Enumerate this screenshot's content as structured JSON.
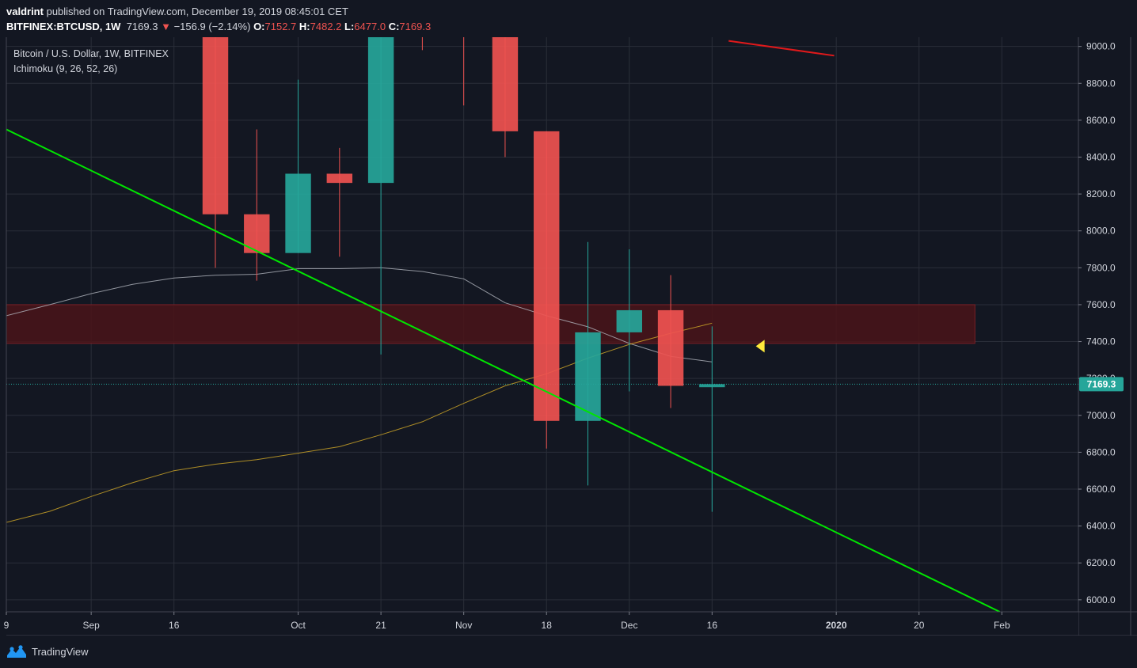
{
  "header": {
    "publisher": "valdrint",
    "published_text": "published on TradingView.com, December 19, 2019 08:45:01 CET",
    "symbol": "BITFINEX:BTCUSD, 1W",
    "last": "7169.3",
    "change_arrow": "▼",
    "change": "−156.9 (−2.14%)",
    "o_label": "O:",
    "o_value": "7152.7",
    "h_label": "H:",
    "h_value": "7482.2",
    "l_label": "L:",
    "l_value": "6477.0",
    "c_label": "C:",
    "c_value": "7169.3"
  },
  "legend": {
    "title": "Bitcoin / U.S. Dollar, 1W, BITFINEX",
    "indicator": "Ichimoku (9, 26, 52, 26)"
  },
  "footer": {
    "brand": "TradingView",
    "logo_icon": "tradingview-logo-icon"
  },
  "colors": {
    "background": "#131722",
    "grid": "#2a2e39",
    "up": "#26a69a",
    "down": "#ef5350",
    "trendline": "#00e600",
    "zone_fill": "#4a1419",
    "zone_stroke": "#7a2026",
    "base_line": "#b2b5be",
    "span_line": "#c9a227",
    "arrow": "#ffeb3b",
    "price_tag": "#26a69a"
  },
  "chart_data": {
    "type": "candlestick",
    "title": "Bitcoin / U.S. Dollar, 1W, BITFINEX",
    "x_labels": [
      "9",
      "Sep",
      "16",
      "Oct",
      "21",
      "Nov",
      "18",
      "Dec",
      "16",
      "2020",
      "20",
      "Feb"
    ],
    "x_label_weeks": [
      -4.05,
      -2,
      0,
      3,
      5,
      7,
      9,
      11,
      13,
      16,
      18,
      20
    ],
    "y_ticks": [
      "6000.0",
      "6200.0",
      "6400.0",
      "6600.0",
      "6800.0",
      "7000.0",
      "7200.0",
      "7400.0",
      "7600.0",
      "7800.0",
      "8000.0",
      "8200.0",
      "8400.0",
      "8600.0",
      "8800.0",
      "9000.0"
    ],
    "y_tick_values": [
      6000,
      6200,
      6400,
      6600,
      6800,
      7000,
      7200,
      7400,
      7600,
      7800,
      8000,
      8200,
      8400,
      8600,
      8800,
      9000
    ],
    "ylim": [
      5935,
      9050
    ],
    "week_range": [
      -4.05,
      21.85
    ],
    "candles": [
      {
        "week": 1,
        "open": 9500,
        "high": 9600,
        "low": 7800,
        "close": 8090
      },
      {
        "week": 2,
        "open": 8090,
        "high": 8550,
        "low": 7730,
        "close": 7880
      },
      {
        "week": 3,
        "open": 7880,
        "high": 8820,
        "low": 7880,
        "close": 8310
      },
      {
        "week": 4,
        "open": 8310,
        "high": 8450,
        "low": 7860,
        "close": 8260
      },
      {
        "week": 5,
        "open": 8260,
        "high": 9500,
        "low": 7330,
        "close": 9350
      },
      {
        "week": 6,
        "open": 9350,
        "high": 9400,
        "low": 8980,
        "close": 9250
      },
      {
        "week": 7,
        "open": 9200,
        "high": 9250,
        "low": 8680,
        "close": 9150
      },
      {
        "week": 8,
        "open": 9150,
        "high": 9200,
        "low": 8400,
        "close": 8540
      },
      {
        "week": 9,
        "open": 8540,
        "high": 8540,
        "low": 6820,
        "close": 6970
      },
      {
        "week": 10,
        "open": 6970,
        "high": 7940,
        "low": 6620,
        "close": 7450
      },
      {
        "week": 11,
        "open": 7450,
        "high": 7900,
        "low": 7130,
        "close": 7570
      },
      {
        "week": 12,
        "open": 7570,
        "high": 7760,
        "low": 7040,
        "close": 7160
      },
      {
        "week": 13,
        "open": 7152.7,
        "high": 7482.2,
        "low": 6477.0,
        "close": 7169.3
      }
    ],
    "trendline": [
      [
        -4.05,
        8550
      ],
      [
        19.95,
        5935
      ]
    ],
    "resistance_zone": {
      "from_week": -4.05,
      "to_week": 19.35,
      "low": 7390,
      "high": 7600
    },
    "ichimoku_base_line": [
      [
        -4.05,
        7540
      ],
      [
        -3,
        7600
      ],
      [
        -2,
        7660
      ],
      [
        -1,
        7710
      ],
      [
        0,
        7745
      ],
      [
        1,
        7760
      ],
      [
        2,
        7765
      ],
      [
        3,
        7795
      ],
      [
        4,
        7795
      ],
      [
        5,
        7800
      ],
      [
        6,
        7780
      ],
      [
        7,
        7740
      ],
      [
        8,
        7610
      ],
      [
        9,
        7540
      ],
      [
        10,
        7480
      ],
      [
        11,
        7390
      ],
      [
        12,
        7320
      ],
      [
        13,
        7290
      ]
    ],
    "ichimoku_span_line": [
      [
        -4.05,
        6420
      ],
      [
        -3,
        6480
      ],
      [
        -2,
        6560
      ],
      [
        -1,
        6635
      ],
      [
        0,
        6700
      ],
      [
        1,
        6735
      ],
      [
        2,
        6760
      ],
      [
        3,
        6795
      ],
      [
        4,
        6830
      ],
      [
        5,
        6895
      ],
      [
        6,
        6965
      ],
      [
        7,
        7065
      ],
      [
        8,
        7160
      ],
      [
        9,
        7225
      ],
      [
        10,
        7310
      ],
      [
        11,
        7385
      ],
      [
        12,
        7445
      ],
      [
        13,
        7500
      ]
    ],
    "last_price": 7169.3,
    "last_price_label": "7169.3",
    "marker_week": 14,
    "marker_price": 7375,
    "upper_right_line": [
      [
        13.4,
        9030
      ],
      [
        15.95,
        8950
      ]
    ]
  }
}
